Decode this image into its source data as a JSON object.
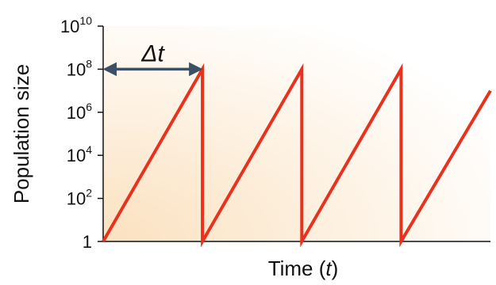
{
  "chart_data": {
    "type": "line",
    "xlabel": "Time (t)",
    "xlabel_parts": {
      "main": "Time (",
      "var": "t",
      "close": ")"
    },
    "ylabel": "Population size",
    "y_scale": "log",
    "ylim": [
      1,
      10000000000
    ],
    "y_ticks": [
      {
        "base": "1",
        "exp": ""
      },
      {
        "base": "10",
        "exp": "2"
      },
      {
        "base": "10",
        "exp": "4"
      },
      {
        "base": "10",
        "exp": "6"
      },
      {
        "base": "10",
        "exp": "8"
      },
      {
        "base": "10",
        "exp": "10"
      }
    ],
    "y_tick_values": [
      1,
      100,
      10000,
      1000000,
      100000000,
      10000000000
    ],
    "xlim": [
      0,
      3.9
    ],
    "x_ticks": [],
    "series": [
      {
        "color": "#e8321e",
        "x": [
          0,
          1,
          1,
          2,
          2,
          3,
          3,
          3.9
        ],
        "y": [
          1,
          100000000,
          1,
          100000000,
          1,
          100000000,
          1,
          10000000
        ]
      }
    ],
    "annotation": {
      "label": "Δt",
      "type": "double-arrow",
      "x_from": 0,
      "x_to": 1,
      "y": 100000000,
      "color": "#3d4f63"
    },
    "background_gradient": [
      "#fbe1bf",
      "#ffffff"
    ],
    "grid": false,
    "legend": "none"
  }
}
